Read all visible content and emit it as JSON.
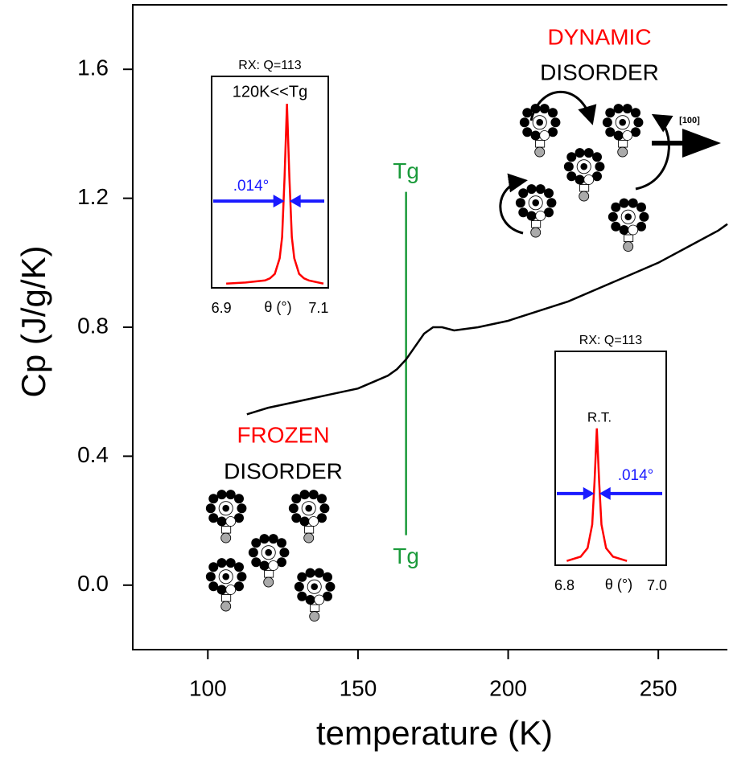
{
  "chart_data": [
    {
      "type": "line",
      "xlabel": "temperature (K)",
      "ylabel": "Cp (J/g/K)",
      "xlim": [
        75,
        273
      ],
      "ylim": [
        -0.2,
        1.8
      ],
      "xticks": [
        100,
        150,
        200,
        250
      ],
      "yticks": [
        {
          "value": 0,
          "label": "0.0"
        },
        0.4,
        0.8,
        1.2,
        1.6
      ],
      "series": [
        {
          "name": "Cp",
          "color": "#000000",
          "x": [
            113,
            120,
            130,
            140,
            150,
            155,
            160,
            163,
            166,
            169,
            172,
            175,
            178,
            182,
            190,
            200,
            210,
            220,
            230,
            240,
            250,
            260,
            270,
            273
          ],
          "values": [
            0.53,
            0.55,
            0.57,
            0.59,
            0.61,
            0.63,
            0.65,
            0.67,
            0.7,
            0.74,
            0.78,
            0.8,
            0.8,
            0.79,
            0.8,
            0.82,
            0.85,
            0.88,
            0.92,
            0.96,
            1.0,
            1.05,
            1.1,
            1.12
          ]
        }
      ],
      "tg_line": {
        "label": "Tg",
        "color": "#1a9a3a",
        "x": 166,
        "y": [
          0.155,
          1.22
        ]
      },
      "annotations": [
        {
          "text": "FROZEN",
          "color": "#ff0000"
        },
        {
          "text": "DISORDER",
          "color": "#000000"
        },
        {
          "text": "DYNAMIC",
          "color": "#ff0000"
        },
        {
          "text": "DISORDER",
          "color": "#000000"
        },
        {
          "text": "[100]",
          "color": "#000000"
        }
      ]
    },
    {
      "type": "line",
      "title": "RX: Q=113",
      "annotation": "120K<<Tg",
      "width_label": ".014°",
      "xlabel": "θ (°)",
      "xlim": [
        6.88,
        7.12
      ],
      "ylim": [
        0,
        1
      ],
      "xticks": [
        6.9,
        7.1
      ],
      "series": [
        {
          "name": "peak",
          "color": "#ff0000",
          "x": [
            6.91,
            6.95,
            6.99,
            7.0,
            7.01,
            7.02,
            7.025,
            7.03,
            7.035,
            7.04,
            7.045,
            7.05,
            7.06,
            7.07,
            7.08,
            7.11
          ],
          "values": [
            0.02,
            0.025,
            0.035,
            0.045,
            0.066,
            0.14,
            0.24,
            0.52,
            0.87,
            0.52,
            0.24,
            0.14,
            0.066,
            0.045,
            0.035,
            0.02
          ]
        }
      ]
    },
    {
      "type": "line",
      "title": "RX: Q=113",
      "annotation": "R.T.",
      "width_label": ".014°",
      "xlabel": "θ (°)",
      "xlim": [
        6.78,
        7.02
      ],
      "ylim": [
        0,
        1
      ],
      "xticks": [
        6.8,
        {
          "value": 7,
          "label": "7.0"
        }
      ],
      "series": [
        {
          "name": "peak",
          "color": "#ff0000",
          "x": [
            6.805,
            6.835,
            6.85,
            6.86,
            6.865,
            6.87,
            6.875,
            6.88,
            6.89,
            6.905,
            6.935
          ],
          "values": [
            0.02,
            0.04,
            0.08,
            0.19,
            0.39,
            0.64,
            0.39,
            0.19,
            0.08,
            0.04,
            0.02
          ]
        }
      ]
    }
  ]
}
